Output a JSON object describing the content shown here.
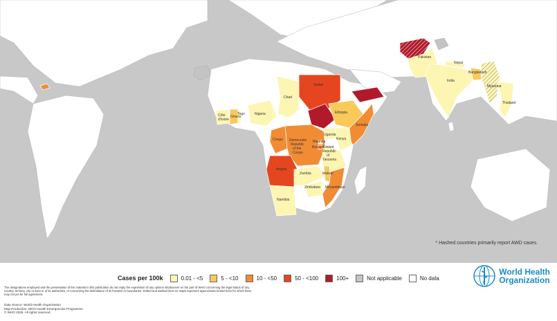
{
  "map": {
    "countries": [
      {
        "name": "Chad",
        "label": "Chad",
        "level": "0.01 - <5"
      },
      {
        "name": "Sudan",
        "label": "Sudan",
        "level": "50 - <100"
      },
      {
        "name": "Nigeria",
        "label": "Nigeria",
        "level": "0.01 - <5"
      },
      {
        "name": "Cote d'Ivoire",
        "label": "Côte\nd'Ivoire",
        "level": "0.01 - <5"
      },
      {
        "name": "Ghana",
        "label": "Ghana",
        "level": "5 - <10"
      },
      {
        "name": "Togo",
        "label": "Togo",
        "level": "0.01 - <5"
      },
      {
        "name": "Ethiopia",
        "label": "Ethiopia",
        "level": "5 - <10"
      },
      {
        "name": "Somalia",
        "label": "Somalia",
        "level": "10 - <50"
      },
      {
        "name": "South Sudan",
        "label": "",
        "level": "100+"
      },
      {
        "name": "Yemen",
        "label": "",
        "level": "100+"
      },
      {
        "name": "Uganda",
        "label": "Uganda",
        "level": "0.01 - <5"
      },
      {
        "name": "Kenya",
        "label": "Kenya",
        "level": "0.01 - <5"
      },
      {
        "name": "Congo",
        "label": "Congo",
        "level": "10 - <50"
      },
      {
        "name": "Democratic Republic of the Congo",
        "label": "Democratic\nRepublic\nof the\nCongo",
        "level": "10 - <50"
      },
      {
        "name": "Rwanda",
        "label": "Rwanda",
        "level": "0.01 - <5"
      },
      {
        "name": "Burundi",
        "label": "Burundi",
        "level": "10 - <50"
      },
      {
        "name": "United Republic of Tanzania",
        "label": "United\nRepublic\nof\nTanzania",
        "level": "0.01 - <5"
      },
      {
        "name": "Angola",
        "label": "Angola",
        "level": "50 - <100"
      },
      {
        "name": "Zambia",
        "label": "Zambia",
        "level": "0.01 - <5"
      },
      {
        "name": "Malawi",
        "label": "Malawi",
        "level": "5 - <10"
      },
      {
        "name": "Mozambique",
        "label": "Mozambique",
        "level": "10 - <50"
      },
      {
        "name": "Zimbabwe",
        "label": "Zimbabwe",
        "level": "0.01 - <5"
      },
      {
        "name": "Namibia",
        "label": "Namibia",
        "level": "0.01 - <5"
      },
      {
        "name": "Afghanistan",
        "label": "",
        "level": "100+",
        "hashed": true
      },
      {
        "name": "Pakistan",
        "label": "Pakistan",
        "level": "0.01 - <5"
      },
      {
        "name": "Nepal",
        "label": "Nepal",
        "level": "0.01 - <5"
      },
      {
        "name": "India",
        "label": "India",
        "level": "0.01 - <5"
      },
      {
        "name": "Bangladesh",
        "label": "Bangladesh",
        "level": "5 - <10"
      },
      {
        "name": "Myanmar",
        "label": "Myanmar",
        "level": "0.01 - <5",
        "hashed": true
      },
      {
        "name": "Thailand",
        "label": "Thailand",
        "level": "0.01 - <5"
      },
      {
        "name": "Haiti",
        "label": "",
        "level": "10 - <50"
      }
    ]
  },
  "note": "* Hashed countries primarily report AWD cases.",
  "legend": {
    "title": "Cases per 100k",
    "items": [
      {
        "label": "0.01 - <5",
        "color": "#fdf5b2"
      },
      {
        "label": "5 - <10",
        "color": "#f9c95a"
      },
      {
        "label": "10 - <50",
        "color": "#f28c34"
      },
      {
        "label": "50 - <100",
        "color": "#e6461f"
      },
      {
        "label": "100+",
        "color": "#b11a2a"
      },
      {
        "label": "Not applicable",
        "color": "#c4c4c4"
      },
      {
        "label": "No data",
        "color": "#ffffff"
      }
    ]
  },
  "disclaimer": "The designations employed and the presentation of the material in this publication do not imply the expression of any opinion whatsoever on the part of WHO concerning the legal status of any country, territory, city or area or of its authorities, or concerning the delimitation of its frontiers or boundaries. Dotted and dashed lines on maps represent approximate border lines for which there may not yet be full agreement.",
  "source": {
    "line1": "Data Source: World Health Organization",
    "line2": "Map Production: WHO Health Emergencies Programme",
    "line3": "© WHO 2025. All rights reserved."
  },
  "logo": {
    "line1": "World Health",
    "line2": "Organization"
  },
  "colors": {
    "land": "#ffffff",
    "ocean": "#c8c8c8",
    "border": "#bdbdbd",
    "accent": "#1a8bc9"
  }
}
